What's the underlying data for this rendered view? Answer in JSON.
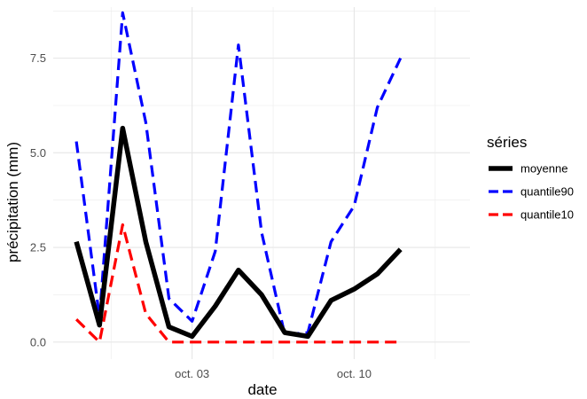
{
  "chart_data": {
    "type": "line",
    "title": "",
    "xlabel": "date",
    "ylabel": "précipitation (mm)",
    "x": [
      "2023-09-28",
      "2023-09-29",
      "2023-09-30",
      "2023-10-01",
      "2023-10-02",
      "2023-10-03",
      "2023-10-04",
      "2023-10-05",
      "2023-10-06",
      "2023-10-07",
      "2023-10-08",
      "2023-10-09",
      "2023-10-10",
      "2023-10-11",
      "2023-10-12",
      "2023-10-13",
      "2023-10-14"
    ],
    "xlim": [
      "2023-09-27",
      "2023-10-15"
    ],
    "x_ticks": [
      {
        "date": "2023-10-03",
        "label": "oct. 03"
      },
      {
        "date": "2023-10-10",
        "label": "oct. 10"
      }
    ],
    "ylim": [
      -0.45,
      8.85
    ],
    "y_ticks": [
      {
        "value": 0,
        "label": "0.0"
      },
      {
        "value": 2.5,
        "label": "2.5"
      },
      {
        "value": 5,
        "label": "5.0"
      },
      {
        "value": 7.5,
        "label": "7.5"
      }
    ],
    "grid": true,
    "legend": {
      "title": "séries",
      "position": "right"
    },
    "series": [
      {
        "name": "moyenne",
        "color": "#000000",
        "style": "solid",
        "values": [
          2.65,
          0.45,
          5.65,
          2.65,
          0.4,
          0.15,
          0.95,
          1.9,
          1.25,
          0.25,
          0.15,
          1.1,
          1.4,
          1.8,
          2.45,
          null,
          null
        ]
      },
      {
        "name": "quantile90",
        "color": "#0000ff",
        "style": "dashed",
        "values": [
          5.3,
          0.65,
          8.7,
          5.8,
          1.15,
          0.55,
          2.4,
          7.85,
          2.9,
          0.2,
          0.25,
          2.65,
          3.6,
          6.2,
          7.5,
          null,
          null
        ]
      },
      {
        "name": "quantile10",
        "color": "#ff0000",
        "style": "dashed",
        "values": [
          0.6,
          0.0,
          3.1,
          0.75,
          0.0,
          0.0,
          0.0,
          0.0,
          0.0,
          0.0,
          0.0,
          0.0,
          0.0,
          0.0,
          0.0,
          null,
          null
        ]
      }
    ]
  }
}
